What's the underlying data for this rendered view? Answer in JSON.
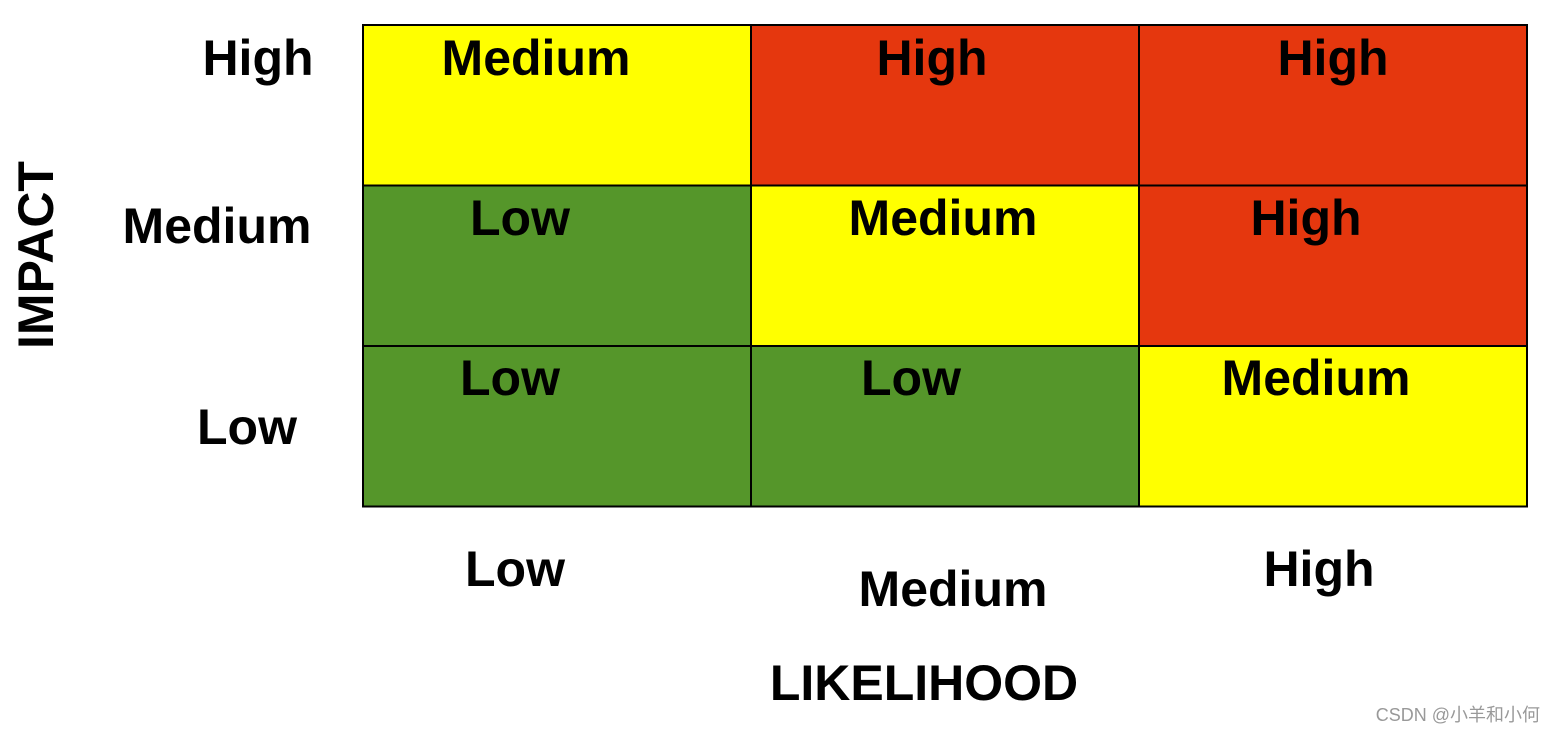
{
  "y_axis": {
    "title": "IMPACT",
    "labels": [
      "High",
      "Medium",
      "Low"
    ]
  },
  "x_axis": {
    "title": "LIKELIHOOD",
    "labels": [
      "Low",
      "Medium",
      "High"
    ]
  },
  "matrix": {
    "rows": [
      [
        {
          "label": "Medium",
          "color": "#ffff00"
        },
        {
          "label": "High",
          "color": "#e5370e"
        },
        {
          "label": "High",
          "color": "#e5370e"
        }
      ],
      [
        {
          "label": "Low",
          "color": "#55962a"
        },
        {
          "label": "Medium",
          "color": "#ffff00"
        },
        {
          "label": "High",
          "color": "#e5370e"
        }
      ],
      [
        {
          "label": "Low",
          "color": "#55962a"
        },
        {
          "label": "Low",
          "color": "#55962a"
        },
        {
          "label": "Medium",
          "color": "#ffff00"
        }
      ]
    ]
  },
  "watermark": "CSDN @小羊和小何"
}
